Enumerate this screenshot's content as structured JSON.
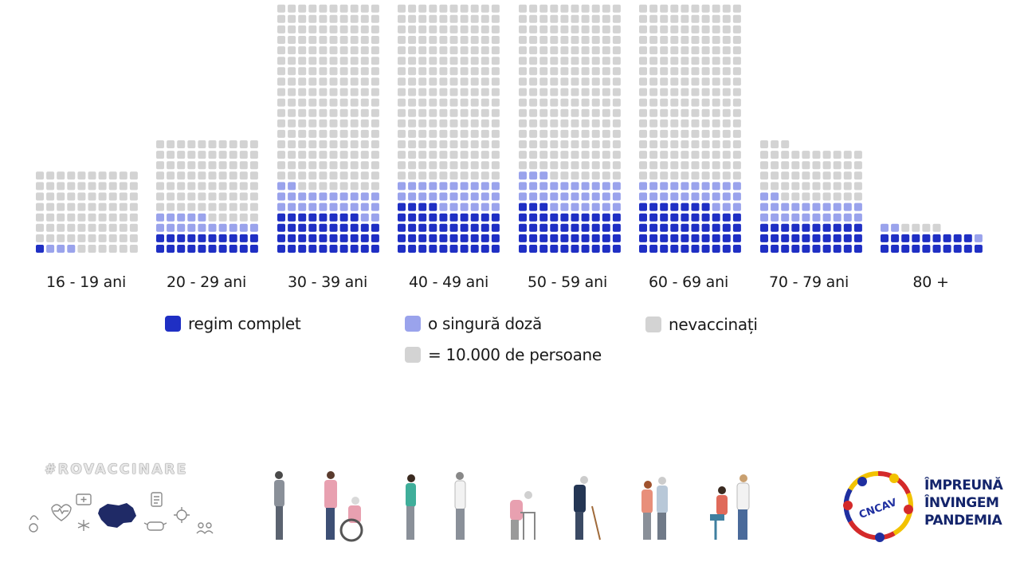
{
  "chart_data": {
    "type": "waffle",
    "unit_note": "= 10.000 de persoane",
    "categories": [
      "16 - 19 ani",
      "20 - 29 ani",
      "30 - 39 ani",
      "40 - 49 ani",
      "50 - 59 ani",
      "60 - 69 ani",
      "70 - 79 ani",
      "80 +"
    ],
    "series": [
      {
        "name": "regim complet",
        "color": "#1f2fc4",
        "values": [
          1,
          20,
          38,
          44,
          43,
          47,
          30,
          19
        ]
      },
      {
        "name": "o singură doză",
        "color": "#9aa3ec",
        "values": [
          3,
          15,
          24,
          26,
          30,
          23,
          22,
          3
        ]
      },
      {
        "name": "nevaccinați",
        "color": "#d3d3d3",
        "values": [
          76,
          75,
          178,
          170,
          167,
          170,
          51,
          4
        ]
      }
    ],
    "totals": [
      80,
      110,
      240,
      240,
      240,
      240,
      103,
      26
    ],
    "columns_per_group": 10
  },
  "legend": {
    "complete": "regim complet",
    "single": "o singură doză",
    "unvaccinated": "nevaccinați",
    "unit": "= 10.000 de persoane"
  },
  "footer": {
    "hashtag": "#ROVACCINARE",
    "logo_text": "CNCAV",
    "slogan": [
      "ÎMPREUNĂ",
      "ÎNVINGEM",
      "PANDEMIA"
    ]
  }
}
